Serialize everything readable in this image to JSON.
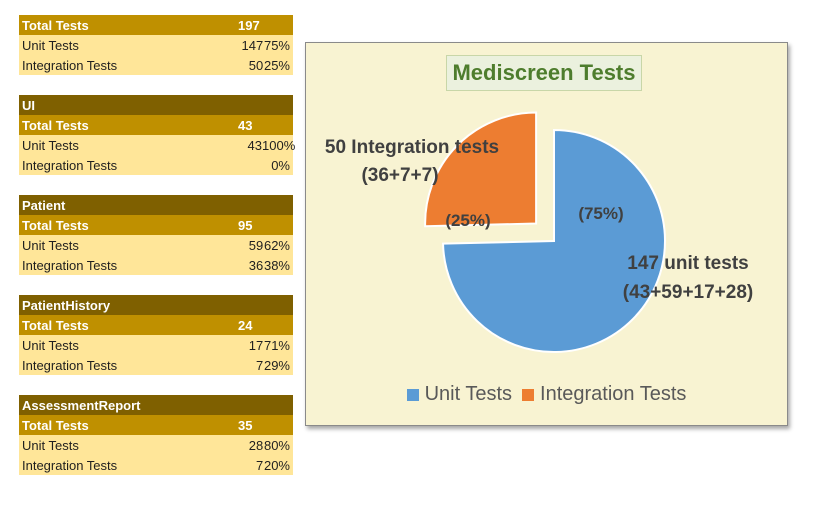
{
  "tables": [
    {
      "section": "",
      "total_label": "Total Tests",
      "total": "197",
      "rows": [
        {
          "label": "Unit Tests",
          "n": "147",
          "pct": "75%"
        },
        {
          "label": "Integration Tests",
          "n": "50",
          "pct": "25%"
        }
      ]
    },
    {
      "section": "UI",
      "total_label": "Total Tests",
      "total": "43",
      "rows": [
        {
          "label": "Unit Tests",
          "n": "43",
          "pct": "100%"
        },
        {
          "label": "Integration Tests",
          "n": "",
          "pct": "0%"
        }
      ]
    },
    {
      "section": "Patient",
      "total_label": "Total Tests",
      "total": "95",
      "rows": [
        {
          "label": "Unit Tests",
          "n": "59",
          "pct": "62%"
        },
        {
          "label": "Integration Tests",
          "n": "36",
          "pct": "38%"
        }
      ]
    },
    {
      "section": "PatientHistory",
      "total_label": "Total Tests",
      "total": "24",
      "rows": [
        {
          "label": "Unit Tests",
          "n": "17",
          "pct": "71%"
        },
        {
          "label": "Integration Tests",
          "n": "7",
          "pct": "29%"
        }
      ]
    },
    {
      "section": "AssessmentReport",
      "total_label": "Total Tests",
      "total": "35",
      "rows": [
        {
          "label": "Unit Tests",
          "n": "28",
          "pct": "80%"
        },
        {
          "label": "Integration Tests",
          "n": "7",
          "pct": "20%"
        }
      ]
    }
  ],
  "chart_data": {
    "type": "pie",
    "title": "Mediscreen Tests",
    "categories": [
      "Unit Tests",
      "Integration Tests"
    ],
    "values": [
      147,
      50
    ],
    "colors": [
      "#5b9bd5",
      "#ed7d31"
    ],
    "exploded": "Integration Tests",
    "legend": "bottom",
    "data_labels": [
      {
        "percent": "(75%)",
        "line1": "147 unit tests",
        "line2": "(43+59+17+28)"
      },
      {
        "percent": "(25%)",
        "line1": "50 Integration tests",
        "line2": "(36+7+7)"
      }
    ]
  }
}
